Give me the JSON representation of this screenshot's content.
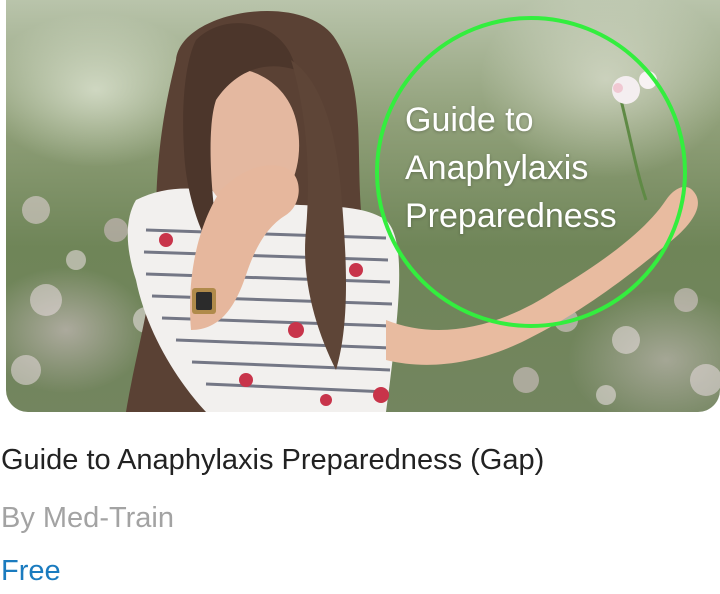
{
  "course": {
    "image_caption": "Guide to Anaphylaxis Preparedness",
    "image_caption_lines": [
      "Guide to",
      "Anaphylaxis",
      "Preparedness"
    ],
    "title": "Guide to Anaphylaxis Preparedness (Gap)",
    "author": "By Med-Train",
    "price": "Free"
  },
  "colors": {
    "circle": "#33ee3e",
    "title": "#222222",
    "author": "#a3a3a3",
    "price": "#1a7bbf"
  }
}
